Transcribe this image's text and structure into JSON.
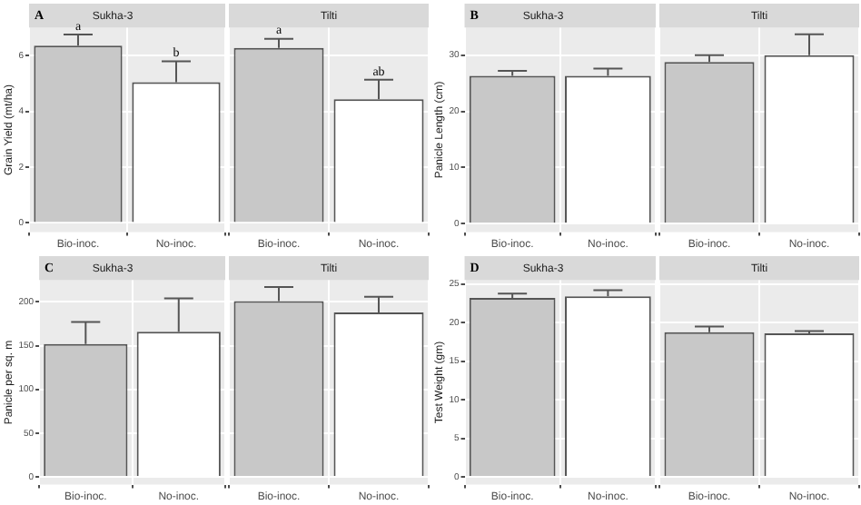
{
  "chart_data": [
    {
      "type": "bar",
      "title": "Sukha-3",
      "ylabel": "Grain Yield (mt/ha)",
      "categories": [
        "Bio-inoc.",
        "No-inoc."
      ],
      "values": [
        6.35,
        5.04
      ],
      "colors": [
        "#c8c8c8",
        "#ffffff"
      ],
      "errors": [
        [
          6.35,
          6.75
        ],
        [
          5.04,
          5.79
        ]
      ],
      "ylim": [
        -0.33,
        7.0
      ],
      "yticks": [
        0,
        2,
        4,
        6
      ],
      "grid": true,
      "legend": false,
      "annotations": [
        "A",
        {
          "text": "a",
          "x": "Bio-inoc.",
          "y": 6.75
        },
        {
          "text": "b",
          "x": "No-inoc.",
          "y": 5.79
        }
      ]
    },
    {
      "type": "bar",
      "title": "Tilti",
      "categories": [
        "Bio-inoc.",
        "No-inoc."
      ],
      "values": [
        6.27,
        4.43
      ],
      "colors": [
        "#c8c8c8",
        "#ffffff"
      ],
      "errors": [
        [
          6.27,
          6.6
        ],
        [
          4.43,
          5.13
        ]
      ],
      "ylim": [
        -0.33,
        7.0
      ],
      "yticks": [
        0,
        2,
        4,
        6
      ],
      "grid": true,
      "legend": false,
      "tick_labels": "x",
      "annotations": [
        {
          "text": "a",
          "x": "Bio-inoc.",
          "y": 6.6
        },
        {
          "text": "ab",
          "x": "No-inoc.",
          "y": 5.13
        }
      ]
    },
    {
      "type": "bar",
      "title": "Sukha-3",
      "ylabel": "Panicle Length (cm)",
      "categories": [
        "Bio-inoc.",
        "No-inoc."
      ],
      "values": [
        26.3,
        26.3
      ],
      "colors": [
        "#c8c8c8",
        "#ffffff"
      ],
      "errors": [
        [
          26.3,
          27.2
        ],
        [
          26.3,
          27.6
        ]
      ],
      "ylim": [
        -1.5,
        34.9
      ],
      "yticks": [
        0,
        10,
        20,
        30
      ],
      "grid": true,
      "legend": false,
      "annotations": [
        "B"
      ]
    },
    {
      "type": "bar",
      "title": "Tilti",
      "categories": [
        "Bio-inoc.",
        "No-inoc."
      ],
      "values": [
        28.8,
        30.0
      ],
      "colors": [
        "#c8c8c8",
        "#ffffff"
      ],
      "errors": [
        [
          28.8,
          30.0
        ],
        [
          30.0,
          33.7
        ]
      ],
      "ylim": [
        -1.5,
        34.9
      ],
      "yticks": [
        0,
        10,
        20,
        30
      ],
      "grid": true,
      "legend": false,
      "tick_labels": "x"
    },
    {
      "type": "bar",
      "title": "Sukha-3",
      "ylabel": "Panicle per sq. m",
      "categories": [
        "Bio-inoc.",
        "No-inoc."
      ],
      "values": [
        152,
        166
      ],
      "colors": [
        "#c8c8c8",
        "#ffffff"
      ],
      "errors": [
        [
          152,
          177
        ],
        [
          166,
          204
        ]
      ],
      "ylim": [
        -9,
        225
      ],
      "yticks": [
        0,
        50,
        100,
        150,
        200
      ],
      "grid": true,
      "legend": false,
      "annotations": [
        "C"
      ]
    },
    {
      "type": "bar",
      "title": "Tilti",
      "categories": [
        "Bio-inoc.",
        "No-inoc."
      ],
      "values": [
        201,
        188
      ],
      "colors": [
        "#c8c8c8",
        "#ffffff"
      ],
      "errors": [
        [
          201,
          217
        ],
        [
          188,
          206
        ]
      ],
      "ylim": [
        -9,
        225
      ],
      "yticks": [
        0,
        50,
        100,
        150,
        200
      ],
      "grid": true,
      "legend": false,
      "tick_labels": "x"
    },
    {
      "type": "bar",
      "title": "Sukha-3",
      "ylabel": "Test Weight (gm)",
      "categories": [
        "Bio-inoc.",
        "No-inoc."
      ],
      "values": [
        23.2,
        23.4
      ],
      "colors": [
        "#c8c8c8",
        "#ffffff"
      ],
      "errors": [
        [
          23.2,
          23.75
        ],
        [
          23.4,
          24.2
        ]
      ],
      "ylim": [
        -1,
        25.5
      ],
      "yticks": [
        0,
        5,
        10,
        15,
        20,
        25
      ],
      "grid": true,
      "legend": false,
      "annotations": [
        "D"
      ]
    },
    {
      "type": "bar",
      "title": "Tilti",
      "categories": [
        "Bio-inoc.",
        "No-inoc."
      ],
      "values": [
        18.75,
        18.6
      ],
      "colors": [
        "#c8c8c8",
        "#ffffff"
      ],
      "errors": [
        [
          18.75,
          19.5
        ],
        [
          18.6,
          18.9
        ]
      ],
      "ylim": [
        -1,
        25.5
      ],
      "yticks": [
        0,
        5,
        10,
        15,
        20,
        25
      ],
      "grid": true,
      "legend": false,
      "tick_labels": "x"
    }
  ]
}
